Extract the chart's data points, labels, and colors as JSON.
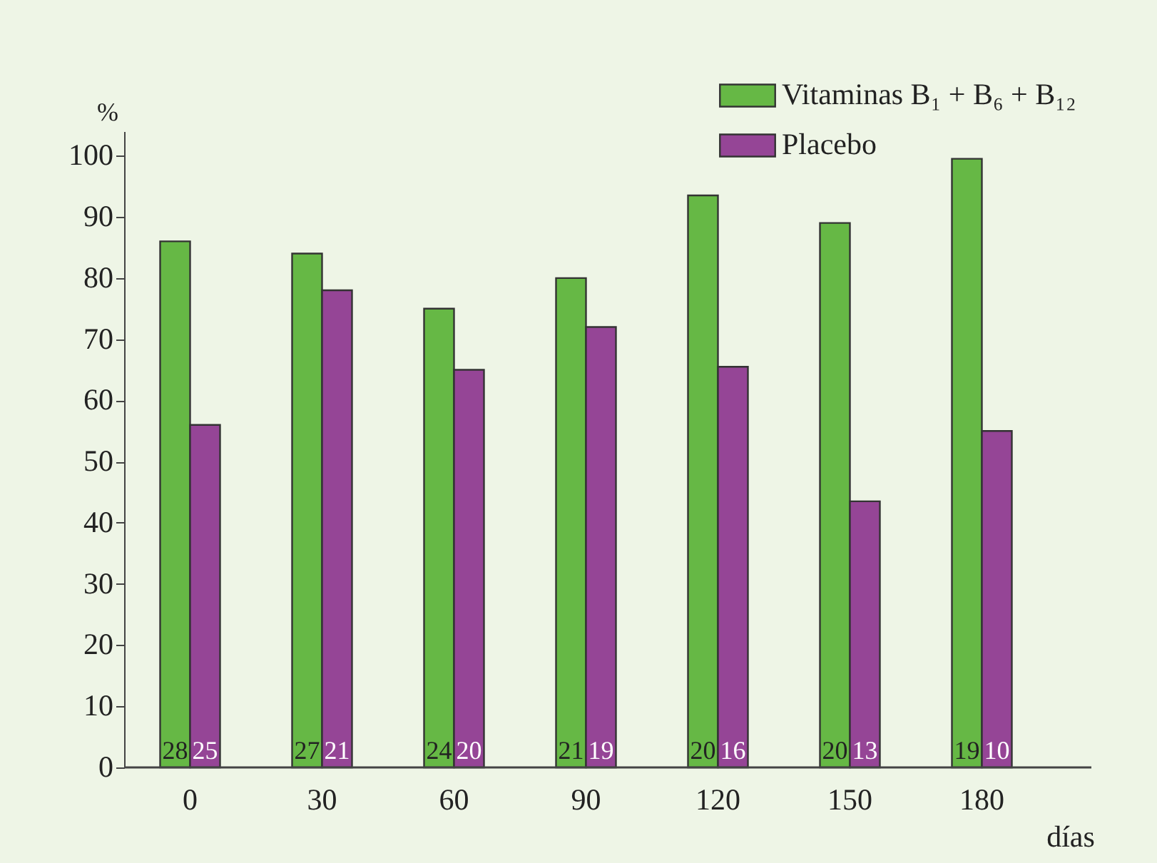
{
  "chart_data": {
    "type": "bar",
    "xlabel": "días",
    "ylabel": "%",
    "categories": [
      "0",
      "30",
      "60",
      "90",
      "120",
      "150",
      "180"
    ],
    "series": [
      {
        "name": "Vitaminas B₁ + B₆ + B₁₂",
        "color": "#66b845",
        "values": [
          86,
          84,
          75,
          80,
          93.5,
          89,
          99.5
        ]
      },
      {
        "name": "Placebo",
        "color": "#954596",
        "values": [
          56,
          78,
          65,
          72,
          65.5,
          43.5,
          55
        ]
      }
    ],
    "ylim": [
      0,
      104
    ],
    "yticks": [
      0,
      10,
      20,
      30,
      40,
      50,
      60,
      70,
      80,
      90,
      100
    ],
    "grid": false,
    "legend": "top right",
    "annotations": [
      {
        "text": "28",
        "x": "0",
        "y": 0
      },
      {
        "text": "25",
        "x": "0",
        "y": 0
      },
      {
        "text": "27",
        "x": "30",
        "y": 0
      },
      {
        "text": "21",
        "x": "30",
        "y": 0
      },
      {
        "text": "24",
        "x": "60",
        "y": 0
      },
      {
        "text": "20",
        "x": "60",
        "y": 0
      },
      {
        "text": "21",
        "x": "90",
        "y": 0
      },
      {
        "text": "19",
        "x": "90",
        "y": 0
      },
      {
        "text": "20",
        "x": "120",
        "y": 0
      },
      {
        "text": "16",
        "x": "120",
        "y": 0
      },
      {
        "text": "20",
        "x": "150",
        "y": 0
      },
      {
        "text": "13",
        "x": "150",
        "y": 0
      },
      {
        "text": "19",
        "x": "180",
        "y": 0
      },
      {
        "text": "10",
        "x": "180",
        "y": 0
      }
    ]
  }
}
